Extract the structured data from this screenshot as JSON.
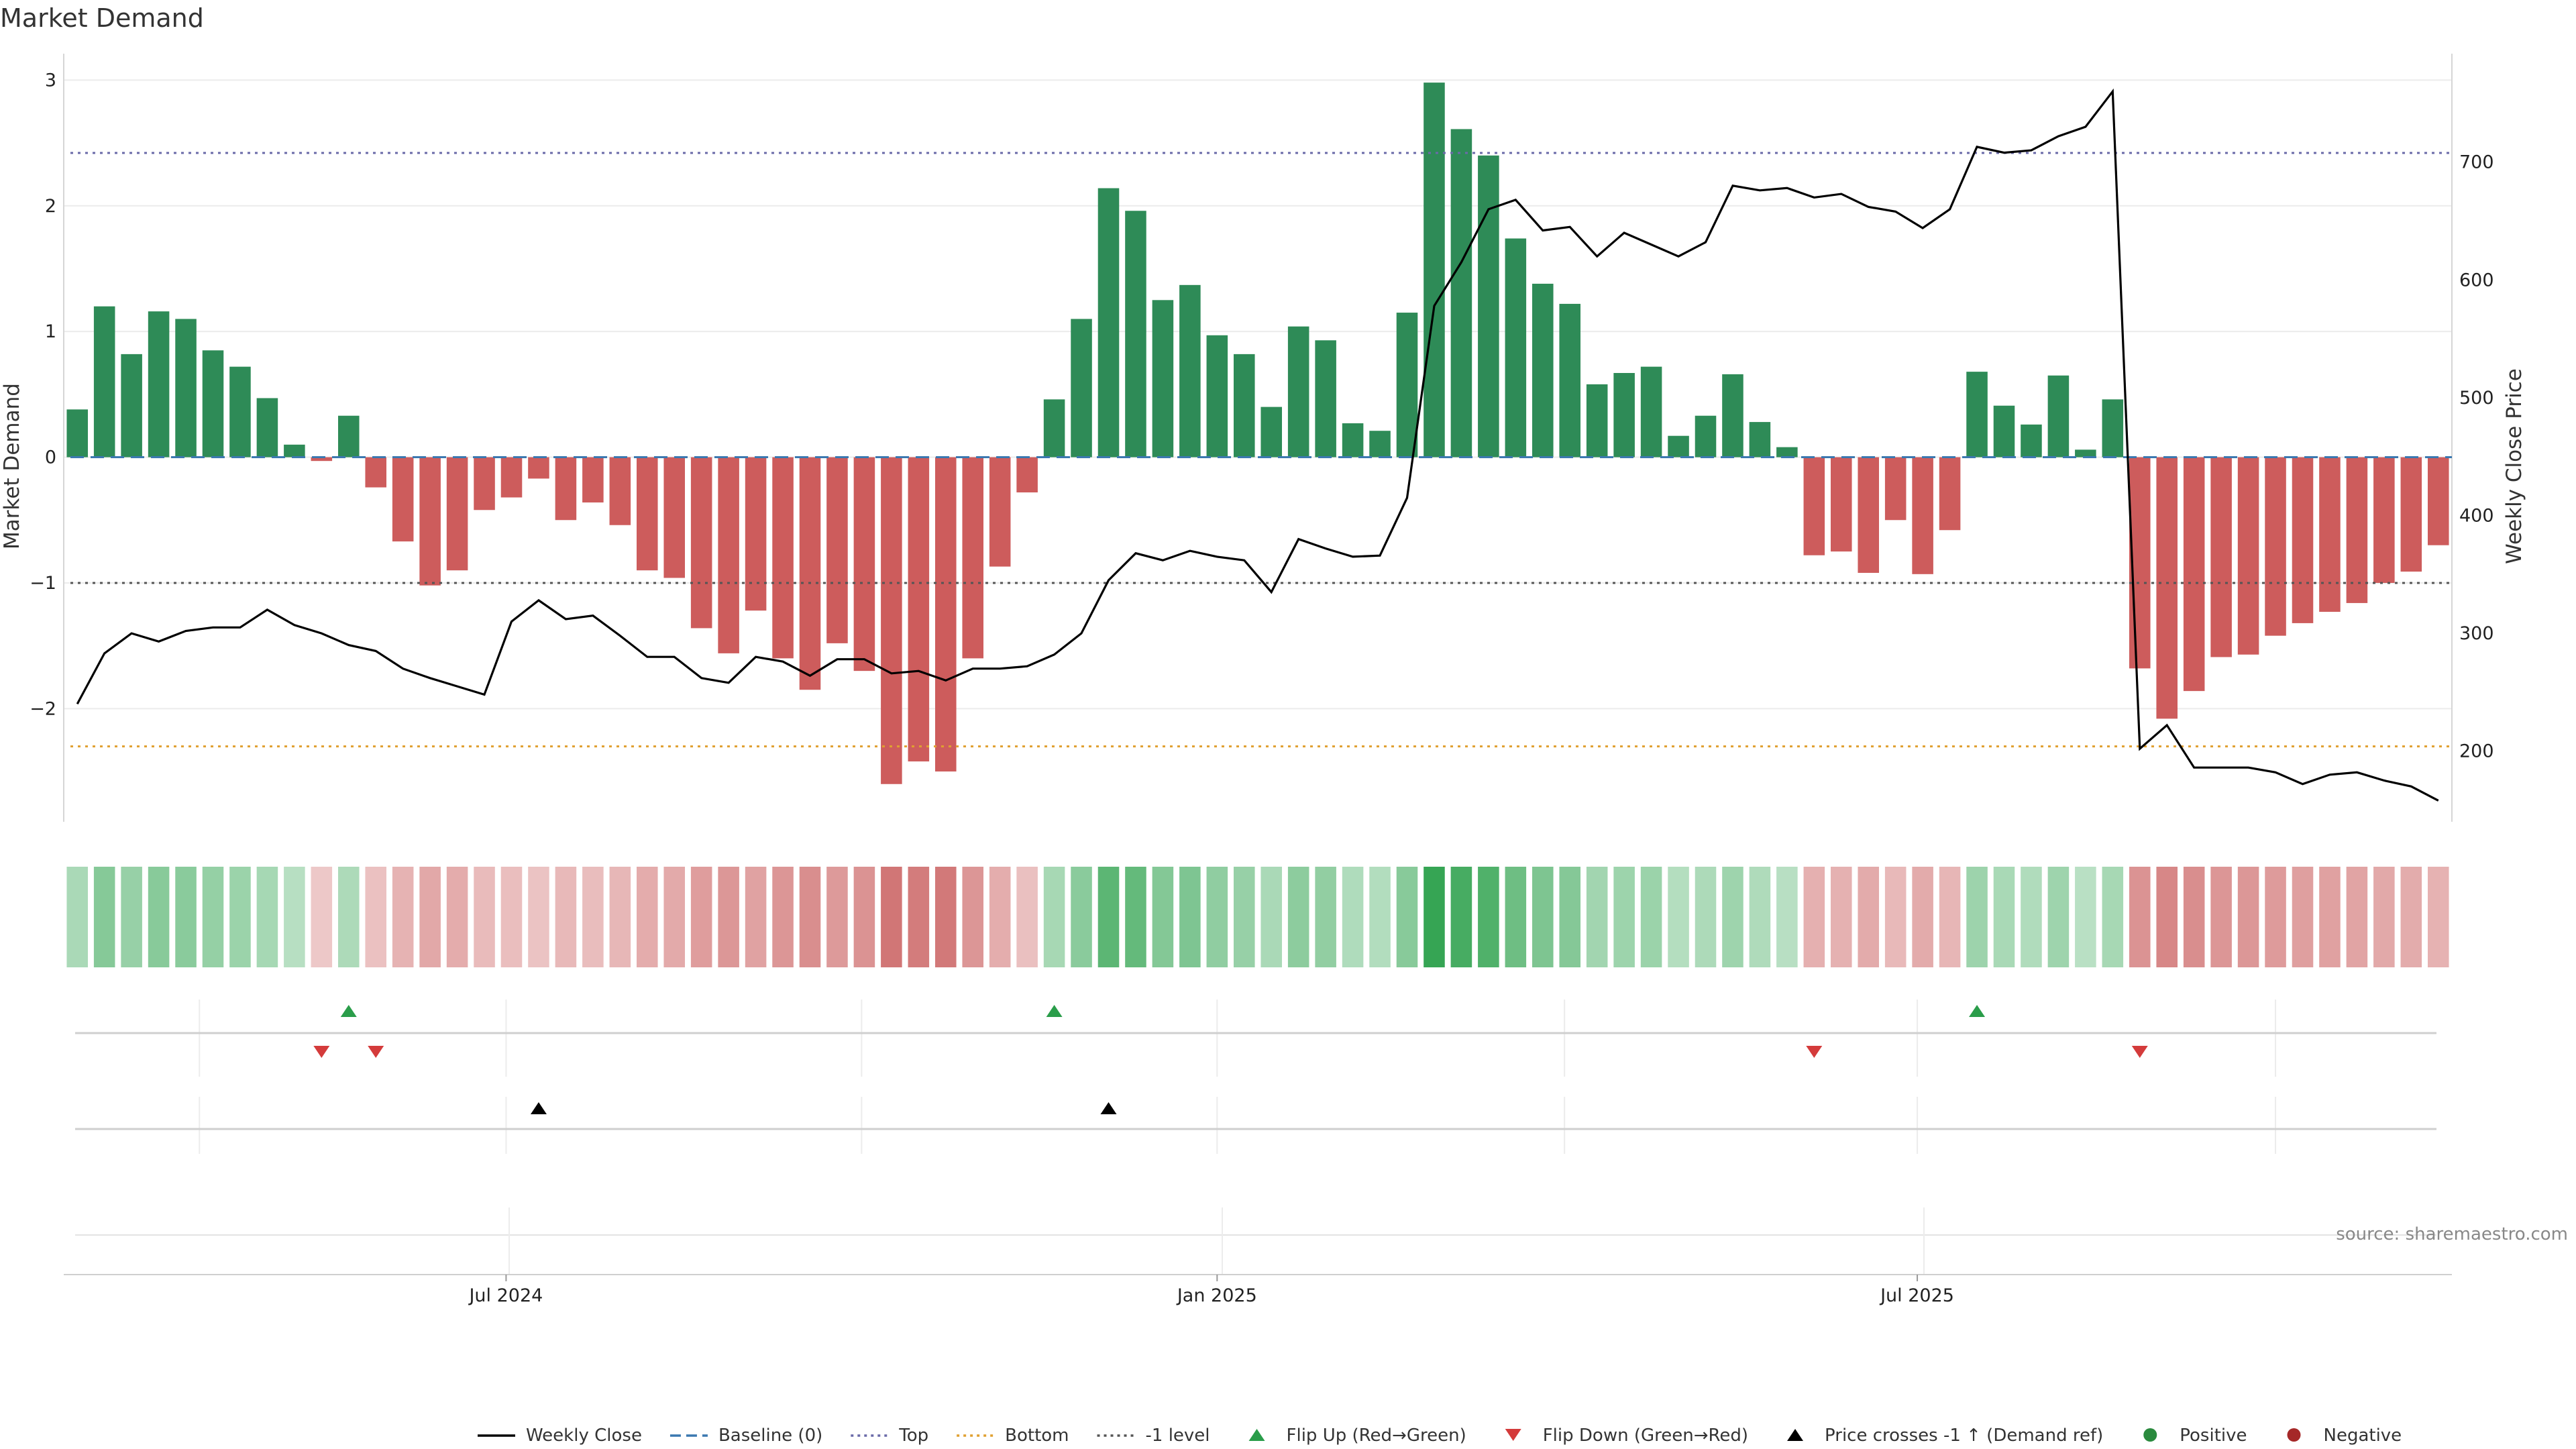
{
  "chart_data": {
    "type": "bar",
    "title": "Market Demand",
    "ylabel_left": "Market Demand",
    "ylabel_right": "Weekly Close Price",
    "source": "source: sharemaestro.com",
    "left_ylim": [
      -2.9,
      3.05
    ],
    "left_ticks": [
      {
        "v": 3,
        "label": "3"
      },
      {
        "v": 2,
        "label": "2"
      },
      {
        "v": 1,
        "label": "1"
      },
      {
        "v": 0,
        "label": "0"
      },
      {
        "v": -1,
        "label": "−1"
      },
      {
        "v": -2,
        "label": "−2"
      }
    ],
    "right_ylim": [
      140,
      775
    ],
    "right_ticks": [
      {
        "v": 700,
        "label": "700"
      },
      {
        "v": 600,
        "label": "600"
      },
      {
        "v": 500,
        "label": "500"
      },
      {
        "v": 400,
        "label": "400"
      },
      {
        "v": 300,
        "label": "300"
      },
      {
        "v": 200,
        "label": "200"
      }
    ],
    "reference_lines": [
      {
        "name": "Top",
        "value": 2.42,
        "color": "#6a6aa8",
        "dash": "4 7"
      },
      {
        "name": "Bottom",
        "value": -2.3,
        "color": "#e0a030",
        "dash": "4 7"
      },
      {
        "name": "-1 level",
        "value": -1,
        "color": "#555555",
        "dash": "4 7"
      },
      {
        "name": "Baseline (0)",
        "value": 0,
        "color": "#3b78b0",
        "dash": "20 10"
      }
    ],
    "x_tick_labels": [
      {
        "week": 16.3,
        "label": "Jul 2024"
      },
      {
        "week": 42.5,
        "label": "Jan 2025"
      },
      {
        "week": 68.3,
        "label": "Jul 2025"
      }
    ],
    "demand": [
      0.38,
      1.2,
      0.82,
      1.16,
      1.1,
      0.85,
      0.72,
      0.47,
      0.1,
      -0.03,
      0.33,
      -0.24,
      -0.67,
      -1.02,
      -0.9,
      -0.42,
      -0.32,
      -0.17,
      -0.5,
      -0.36,
      -0.54,
      -0.9,
      -0.96,
      -1.36,
      -1.56,
      -1.22,
      -1.6,
      -1.85,
      -1.48,
      -1.7,
      -2.6,
      -2.42,
      -2.5,
      -1.6,
      -0.87,
      -0.28,
      0.46,
      1.1,
      2.14,
      1.96,
      1.25,
      1.37,
      0.97,
      0.82,
      0.4,
      1.04,
      0.93,
      0.27,
      0.21,
      1.15,
      2.98,
      2.61,
      2.4,
      1.74,
      1.38,
      1.22,
      0.58,
      0.67,
      0.72,
      0.17,
      0.33,
      0.66,
      0.28,
      0.08,
      -0.78,
      -0.75,
      -0.92,
      -0.5,
      -0.93,
      -0.58,
      0.68,
      0.41,
      0.26,
      0.65,
      0.06,
      0.46,
      -1.68,
      -2.08,
      -1.86,
      -1.59,
      -1.57,
      -1.42,
      -1.32,
      -1.23,
      -1.16,
      -1.0,
      -0.91,
      -0.7
    ],
    "weekly_close": [
      240,
      283,
      300,
      293,
      302,
      305,
      305,
      320,
      307,
      300,
      290,
      285,
      270,
      262,
      255,
      248,
      310,
      328,
      312,
      315,
      298,
      280,
      280,
      262,
      258,
      280,
      276,
      264,
      278,
      278,
      266,
      268,
      260,
      270,
      270,
      272,
      282,
      300,
      345,
      368,
      362,
      370,
      365,
      362,
      335,
      380,
      372,
      365,
      366,
      415,
      578,
      615,
      660,
      668,
      642,
      645,
      620,
      640,
      630,
      620,
      632,
      680,
      676,
      678,
      670,
      673,
      662,
      658,
      644,
      660,
      713,
      708,
      710,
      722,
      730,
      760,
      202,
      222,
      186,
      186,
      186,
      182,
      172,
      180,
      182,
      175,
      170,
      158
    ],
    "flip_up_weeks": [
      10,
      36,
      70
    ],
    "flip_down_weeks": [
      9,
      11,
      64,
      76
    ],
    "price_cross_weeks": [
      17,
      38
    ],
    "legend": [
      {
        "label": "Weekly Close",
        "kind": "line",
        "color": "#000000"
      },
      {
        "label": "Baseline (0)",
        "kind": "dash",
        "color": "#3b78b0"
      },
      {
        "label": "Top",
        "kind": "dot",
        "color": "#6a6aa8"
      },
      {
        "label": "Bottom",
        "kind": "dot",
        "color": "#e0a030"
      },
      {
        "label": "-1 level",
        "kind": "dot",
        "color": "#555555"
      },
      {
        "label": "Flip Up (Red→Green)",
        "kind": "tri-up",
        "color": "#2a9d4a"
      },
      {
        "label": "Flip Down (Green→Red)",
        "kind": "tri-down",
        "color": "#d43b3b"
      },
      {
        "label": "Price crosses -1 ↑ (Demand ref)",
        "kind": "tri-up",
        "color": "#000000"
      },
      {
        "label": "Positive",
        "kind": "dot-marker",
        "color": "#2a8a3e"
      },
      {
        "label": "Negative",
        "kind": "dot-marker",
        "color": "#a52828"
      }
    ],
    "colors": {
      "positive_bar": "#2e8b57",
      "negative_bar": "#cd5c5c",
      "price_line": "#000000",
      "grid": "#ececec"
    }
  }
}
